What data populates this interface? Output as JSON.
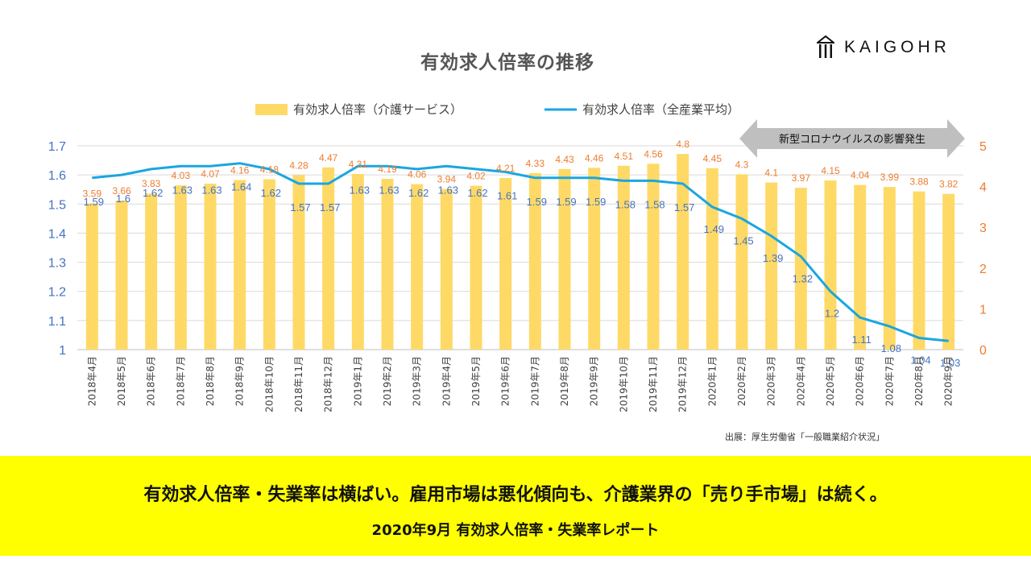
{
  "header": {
    "title": "有効求人倍率の推移",
    "logo": "KAIGOHR"
  },
  "chart_data": {
    "type": "bar+line",
    "categories": [
      "2018年4月",
      "2018年5月",
      "2018年6月",
      "2018年7月",
      "2018年8月",
      "2018年9月",
      "2018年10月",
      "2018年11月",
      "2018年12月",
      "2019年1月",
      "2019年2月",
      "2019年3月",
      "2019年4月",
      "2019年5月",
      "2019年6月",
      "2019年7月",
      "2019年8月",
      "2019年9月",
      "2019年10月",
      "2019年11月",
      "2019年12月",
      "2020年1月",
      "2020年2月",
      "2020年3月",
      "2020年4月",
      "2020年5月",
      "2020年6月",
      "2020年7月",
      "2020年8月",
      "2020年9月"
    ],
    "series": [
      {
        "name": "有効求人倍率（介護サービス）",
        "type": "bar",
        "axis": "right",
        "color": "#ffd966",
        "label_color": "#ed7d31",
        "values": [
          3.59,
          3.66,
          3.83,
          4.03,
          4.07,
          4.16,
          4.18,
          4.28,
          4.47,
          4.31,
          4.19,
          4.06,
          3.94,
          4.02,
          4.21,
          4.33,
          4.43,
          4.46,
          4.51,
          4.56,
          4.8,
          4.45,
          4.3,
          4.1,
          3.97,
          4.15,
          4.04,
          3.99,
          3.88,
          3.82
        ]
      },
      {
        "name": "有効求人倍率（全産業平均）",
        "type": "line",
        "axis": "left",
        "color": "#1aa6e0",
        "label_color": "#4472c4",
        "values": [
          1.59,
          1.6,
          1.62,
          1.63,
          1.63,
          1.64,
          1.62,
          1.57,
          1.57,
          1.63,
          1.63,
          1.62,
          1.63,
          1.62,
          1.61,
          1.59,
          1.59,
          1.59,
          1.58,
          1.58,
          1.57,
          1.49,
          1.45,
          1.39,
          1.32,
          1.2,
          1.11,
          1.08,
          1.04,
          1.03
        ]
      }
    ],
    "left_axis": {
      "ylim": [
        1,
        1.7
      ],
      "ticks": [
        "1",
        "1.1",
        "1.2",
        "1.3",
        "1.4",
        "1.5",
        "1.6",
        "1.7"
      ],
      "color": "#4472c4"
    },
    "right_axis": {
      "ylim": [
        0,
        5
      ],
      "ticks": [
        "0",
        "1",
        "2",
        "3",
        "4",
        "5"
      ],
      "color": "#ed7d31"
    },
    "legend_position": "top",
    "grid": true,
    "annotation": "新型コロナウイルスの影響発生",
    "source": "出展：厚生労働省「一般職業紹介状況」"
  },
  "banner": {
    "headline": "有効求人倍率・失業率は横ばい。雇用市場は悪化傾向も、介護業界の「売り手市場」は続く。",
    "subtitle": "2020年9月 有効求人倍率・失業率レポート"
  }
}
